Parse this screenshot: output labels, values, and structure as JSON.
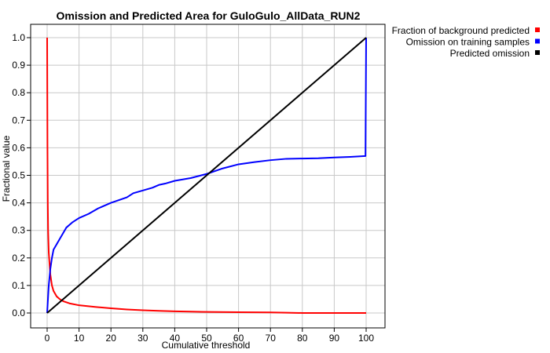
{
  "chart_data": {
    "type": "line",
    "title": "Omission and Predicted Area for GuloGulo_AllData_RUN2",
    "xlabel": "Cumulative threshold",
    "ylabel": "Fractional value",
    "xlim": [
      0,
      100
    ],
    "ylim": [
      0,
      1.0
    ],
    "xticks": [
      "0",
      "10",
      "20",
      "30",
      "40",
      "50",
      "60",
      "70",
      "80",
      "90",
      "100"
    ],
    "yticks": [
      "0.0",
      "0.1",
      "0.2",
      "0.3",
      "0.4",
      "0.5",
      "0.6",
      "0.7",
      "0.8",
      "0.9",
      "1.0"
    ],
    "grid": true,
    "legend_position": "top-right",
    "series": [
      {
        "name": "Fraction of background predicted",
        "color": "#ff0000",
        "x": [
          0,
          0.1,
          0.2,
          0.3,
          0.5,
          0.8,
          1,
          1.5,
          2,
          3,
          4,
          5,
          7,
          10,
          15,
          20,
          25,
          30,
          35,
          40,
          45,
          50,
          60,
          70,
          75,
          80,
          90,
          100
        ],
        "y": [
          1.0,
          0.6,
          0.4,
          0.3,
          0.22,
          0.17,
          0.14,
          0.1,
          0.08,
          0.06,
          0.05,
          0.043,
          0.035,
          0.028,
          0.022,
          0.017,
          0.013,
          0.01,
          0.008,
          0.006,
          0.005,
          0.004,
          0.003,
          0.002,
          0.001,
          0.0,
          0.0,
          0.0
        ]
      },
      {
        "name": "Omission on training samples",
        "color": "#0000ff",
        "x": [
          0,
          0.2,
          0.5,
          1,
          1.5,
          2,
          3,
          4,
          5,
          6,
          8,
          10,
          13,
          16,
          20,
          25,
          27,
          30,
          33,
          35,
          37,
          40,
          45,
          50,
          55,
          60,
          65,
          70,
          75,
          80,
          85,
          90,
          95,
          99.8,
          100
        ],
        "y": [
          0,
          0.04,
          0.1,
          0.16,
          0.2,
          0.23,
          0.25,
          0.27,
          0.29,
          0.31,
          0.33,
          0.345,
          0.36,
          0.38,
          0.4,
          0.42,
          0.435,
          0.445,
          0.455,
          0.465,
          0.47,
          0.48,
          0.49,
          0.505,
          0.525,
          0.54,
          0.548,
          0.555,
          0.56,
          0.561,
          0.562,
          0.565,
          0.567,
          0.57,
          1.0
        ]
      },
      {
        "name": "Predicted omission",
        "color": "#000000",
        "x": [
          0,
          100
        ],
        "y": [
          0,
          1.0
        ]
      }
    ]
  }
}
